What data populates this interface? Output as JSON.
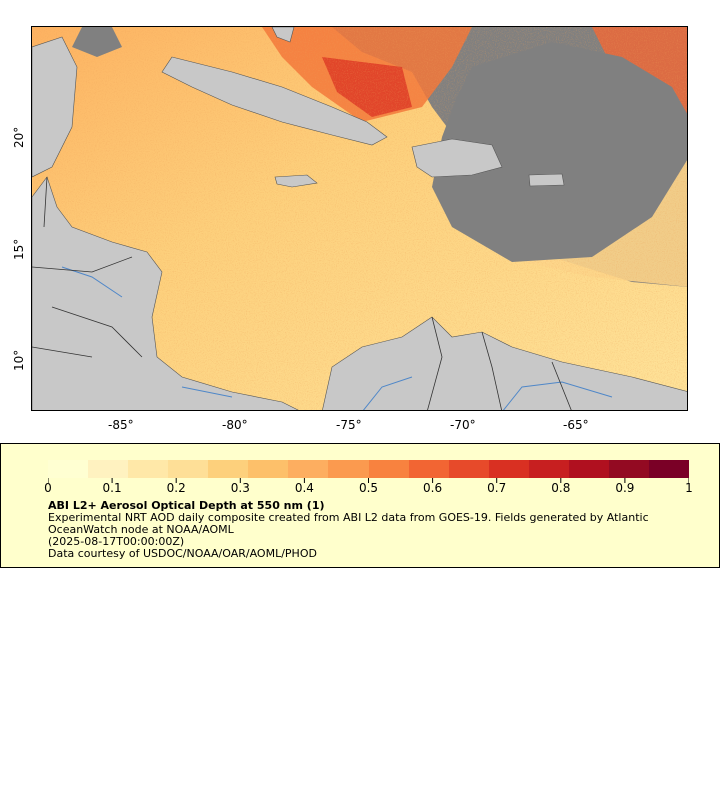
{
  "map": {
    "type": "aerosol optical depth map",
    "lon_ticks": [
      "-85°",
      "-80°",
      "-75°",
      "-70°",
      "-65°"
    ],
    "lat_ticks": [
      "20°",
      "15°",
      "10°"
    ],
    "lon_range": [
      -89,
      -60
    ],
    "lat_range": [
      8.5,
      25.5
    ],
    "colors": {
      "land": "#c8c8c8",
      "no_data": "#808080",
      "rivers": "#4f87c8",
      "borders": "#333333"
    }
  },
  "legend": {
    "colorbar_min": 0,
    "colorbar_max": 1,
    "colorbar_labels": [
      "0",
      "0.1",
      "0.2",
      "0.3",
      "0.4",
      "0.5",
      "0.6",
      "0.7",
      "0.8",
      "0.9",
      "1"
    ],
    "colorbar_colors": [
      "#ffffd2",
      "#fff2c0",
      "#ffe8a8",
      "#fedf97",
      "#fdd07c",
      "#fdc06a",
      "#fdae60",
      "#fb9a4f",
      "#f8823f",
      "#f26533",
      "#e74a2a",
      "#d93022",
      "#c71f20",
      "#b0101f",
      "#930a22",
      "#7a0026"
    ],
    "title": "ABI L2+ Aerosol Optical Depth at 550 nm (1)",
    "description_lines": [
      "Experimental NRT AOD daily composite created from ABI L2 data from GOES-19. Fields generated by Atlantic",
      "OceanWatch node at NOAA/AOML",
      "(2025-08-17T00:00:00Z)",
      "Data courtesy of USDOC/NOAA/OAR/AOML/PHOD"
    ]
  }
}
